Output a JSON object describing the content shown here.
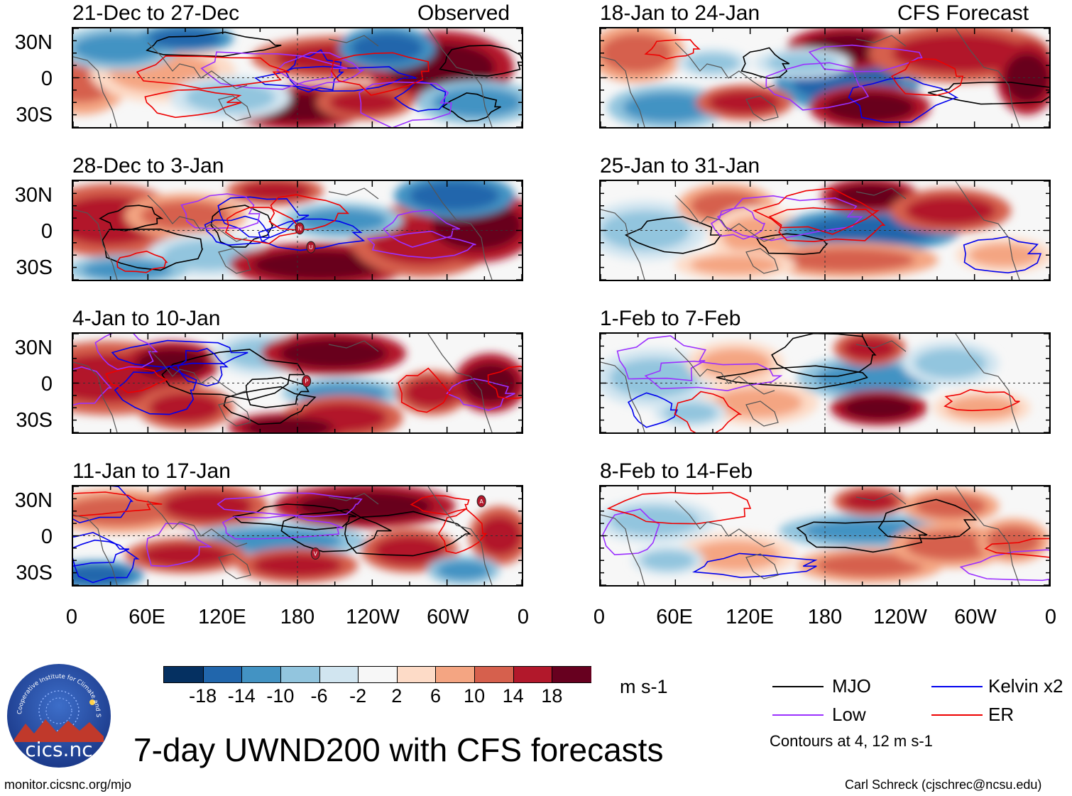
{
  "chart_data": {
    "type": "heatmap",
    "title": "7-day UWND200 with CFS forecasts",
    "units": "m s-1",
    "ylabel_ticks": [
      "30N",
      "0",
      "30S"
    ],
    "xlabel_ticks": [
      "0",
      "60E",
      "120E",
      "180",
      "120W",
      "60W",
      "0"
    ],
    "colorbar": {
      "ticks": [
        "-18",
        "-14",
        "-10",
        "-6",
        "-2",
        "2",
        "6",
        "10",
        "14",
        "18"
      ],
      "colors": [
        "#053061",
        "#2166ac",
        "#4393c3",
        "#92c5de",
        "#d1e5f0",
        "#f7f7f7",
        "#fddbc7",
        "#f4a582",
        "#d6604d",
        "#b2182b",
        "#67001f"
      ]
    },
    "columns": [
      {
        "label": "Observed",
        "panels": [
          {
            "period": "21-Dec to 27-Dec"
          },
          {
            "period": "28-Dec to 3-Jan"
          },
          {
            "period": "4-Jan to 10-Jan"
          },
          {
            "period": "11-Jan to 17-Jan"
          }
        ]
      },
      {
        "label": "CFS Forecast",
        "panels": [
          {
            "period": "18-Jan to 24-Jan"
          },
          {
            "period": "25-Jan to 31-Jan"
          },
          {
            "period": "1-Feb to 7-Feb"
          },
          {
            "period": "8-Feb to 14-Feb"
          }
        ]
      }
    ],
    "markers": [
      {
        "panel": "28-Dec to 3-Jan",
        "letter": "N"
      },
      {
        "panel": "28-Dec to 3-Jan",
        "letter": "U"
      },
      {
        "panel": "4-Jan to 10-Jan",
        "letter": "P"
      },
      {
        "panel": "11-Jan to 17-Jan",
        "letter": "V"
      },
      {
        "panel": "11-Jan to 17-Jan",
        "letter": "A"
      }
    ],
    "legend": {
      "entries": [
        {
          "name": "MJO",
          "color": "#000000"
        },
        {
          "name": "Kelvin x2",
          "color": "#0000ee"
        },
        {
          "name": "Low",
          "color": "#9b30ff"
        },
        {
          "name": "ER",
          "color": "#ee0000"
        }
      ],
      "note": "Contours at 4, 12 m s-1"
    }
  },
  "logo": {
    "text": "cics.nc",
    "ring_text": "Cooperative Institute for Climate and Satellites"
  },
  "footer": {
    "left": "monitor.cicsnc.org/mjo",
    "right": "Carl Schreck (cjschrec@ncsu.edu)"
  }
}
